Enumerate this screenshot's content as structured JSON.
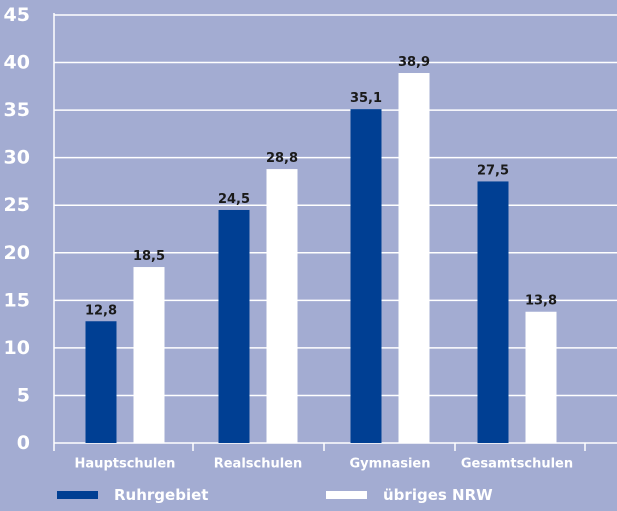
{
  "chart_data": {
    "type": "bar",
    "title": "",
    "xlabel": "",
    "ylabel": "",
    "categories": [
      "Hauptschulen",
      "Realschulen",
      "Gymnasien",
      "Gesamtschulen"
    ],
    "series": [
      {
        "name": "Ruhrgebiet",
        "values": [
          12.8,
          24.5,
          35.1,
          27.5
        ],
        "labels": [
          "12,8",
          "24,5",
          "35,1",
          "27,5"
        ],
        "color": "#003f93"
      },
      {
        "name": "übriges NRW",
        "values": [
          18.5,
          28.8,
          38.9,
          13.8
        ],
        "labels": [
          "18,5",
          "28,8",
          "38,9",
          "13,8"
        ],
        "color": "#ffffff"
      }
    ],
    "ylim": [
      0,
      45
    ],
    "yticks": [
      "0",
      "5",
      "10",
      "15",
      "20",
      "25",
      "30",
      "35",
      "40",
      "45"
    ],
    "grid": true,
    "legend_position": "bottom",
    "colors": {
      "background": "#a3acd2",
      "grid": "#ffffff",
      "text": "#1a1a1a",
      "tick_text": "#ffffff"
    }
  }
}
